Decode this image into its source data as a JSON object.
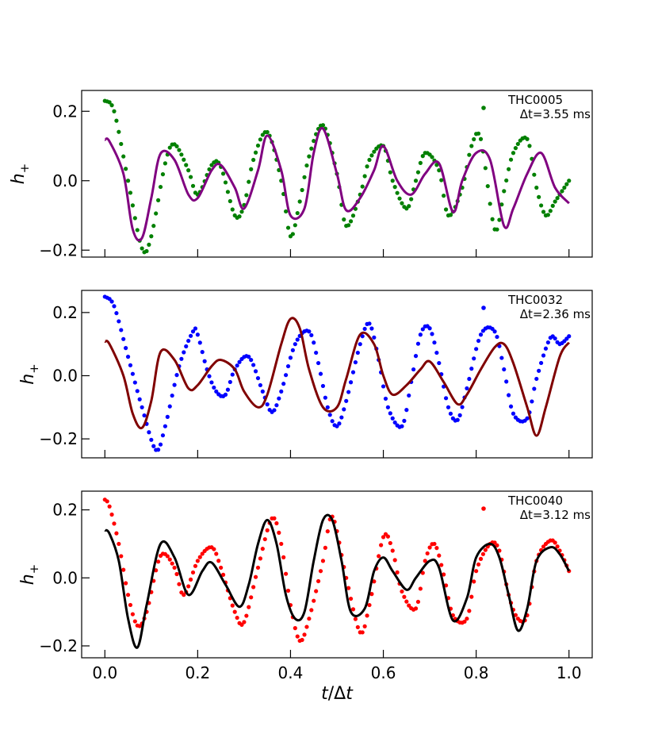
{
  "chart_data": [
    {
      "type": "line",
      "ylabel": "h+",
      "yticks": [
        -0.2,
        0.0,
        0.2
      ],
      "ytick_labels": [
        "−0.2",
        "0.0",
        "0.2"
      ],
      "xlim": [
        -0.05,
        1.05
      ],
      "ylim": [
        -0.22,
        0.26
      ],
      "legend": {
        "placement": "top-right",
        "label_line1": "THC0005",
        "label_line2": "Δt=3.55 ms"
      },
      "series": [
        {
          "name": "THC0005",
          "style": "dots",
          "color": "#008000",
          "x": [
            0.0,
            0.02,
            0.05,
            0.08,
            0.1,
            0.13,
            0.15,
            0.18,
            0.2,
            0.23,
            0.25,
            0.28,
            0.3,
            0.32,
            0.35,
            0.38,
            0.4,
            0.42,
            0.44,
            0.47,
            0.5,
            0.52,
            0.55,
            0.57,
            0.6,
            0.62,
            0.65,
            0.67,
            0.69,
            0.72,
            0.74,
            0.77,
            0.79,
            0.81,
            0.84,
            0.86,
            0.88,
            0.91,
            0.93,
            0.95,
            0.97,
            1.0
          ],
          "y": [
            0.23,
            0.2,
            0.0,
            -0.195,
            -0.16,
            0.05,
            0.105,
            0.03,
            -0.04,
            0.045,
            0.04,
            -0.1,
            -0.07,
            0.06,
            0.14,
            0.0,
            -0.16,
            -0.06,
            0.07,
            0.16,
            0.02,
            -0.13,
            -0.04,
            0.06,
            0.1,
            0.0,
            -0.08,
            0.0,
            0.08,
            0.03,
            -0.1,
            -0.02,
            0.1,
            0.12,
            -0.14,
            -0.03,
            0.08,
            0.12,
            -0.02,
            -0.1,
            -0.06,
            0.0
          ]
        },
        {
          "name": "",
          "style": "line",
          "color": "#800080",
          "x": [
            0.0,
            0.01,
            0.04,
            0.06,
            0.08,
            0.1,
            0.12,
            0.15,
            0.18,
            0.2,
            0.23,
            0.25,
            0.28,
            0.3,
            0.33,
            0.35,
            0.38,
            0.4,
            0.43,
            0.45,
            0.47,
            0.5,
            0.52,
            0.55,
            0.58,
            0.6,
            0.63,
            0.66,
            0.69,
            0.72,
            0.75,
            0.77,
            0.8,
            0.83,
            0.86,
            0.88,
            0.91,
            0.94,
            0.97,
            1.0
          ],
          "y": [
            0.118,
            0.113,
            0.02,
            -0.14,
            -0.165,
            -0.05,
            0.078,
            0.06,
            -0.04,
            -0.05,
            0.03,
            0.045,
            -0.02,
            -0.08,
            0.03,
            0.13,
            0.03,
            -0.1,
            -0.08,
            0.08,
            0.15,
            0.02,
            -0.085,
            -0.05,
            0.03,
            0.1,
            0.0,
            -0.04,
            0.02,
            0.05,
            -0.09,
            0.0,
            0.08,
            0.06,
            -0.13,
            -0.08,
            0.02,
            0.08,
            -0.02,
            -0.065
          ]
        }
      ]
    },
    {
      "type": "line",
      "ylabel": "h+",
      "yticks": [
        -0.2,
        0.0,
        0.2
      ],
      "ytick_labels": [
        "−0.2",
        "0.0",
        "0.2"
      ],
      "xlim": [
        -0.05,
        1.05
      ],
      "ylim": [
        -0.26,
        0.27
      ],
      "legend": {
        "placement": "top-right",
        "label_line1": "THC0032",
        "label_line2": "Δt=2.36 ms"
      },
      "series": [
        {
          "name": "THC0032",
          "style": "dots",
          "color": "#0000ff",
          "x": [
            0.0,
            0.02,
            0.05,
            0.08,
            0.11,
            0.13,
            0.16,
            0.19,
            0.2,
            0.22,
            0.24,
            0.26,
            0.28,
            0.31,
            0.34,
            0.36,
            0.38,
            0.41,
            0.44,
            0.46,
            0.48,
            0.5,
            0.52,
            0.55,
            0.57,
            0.59,
            0.61,
            0.64,
            0.66,
            0.68,
            0.7,
            0.72,
            0.74,
            0.76,
            0.78,
            0.81,
            0.84,
            0.86,
            0.88,
            0.91,
            0.93,
            0.96,
            0.98,
            1.0
          ],
          "y": [
            0.25,
            0.22,
            0.06,
            -0.1,
            -0.235,
            -0.16,
            0.03,
            0.14,
            0.13,
            0.02,
            -0.05,
            -0.06,
            0.02,
            0.06,
            -0.05,
            -0.115,
            -0.05,
            0.1,
            0.14,
            0.04,
            -0.1,
            -0.16,
            -0.08,
            0.1,
            0.165,
            0.05,
            -0.1,
            -0.16,
            -0.02,
            0.13,
            0.15,
            0.04,
            -0.1,
            -0.14,
            -0.04,
            0.13,
            0.14,
            0.02,
            -0.12,
            -0.135,
            -0.01,
            0.12,
            0.1,
            0.125
          ]
        },
        {
          "name": "",
          "style": "line",
          "color": "#800000",
          "x": [
            0.0,
            0.01,
            0.04,
            0.06,
            0.08,
            0.1,
            0.12,
            0.15,
            0.18,
            0.2,
            0.23,
            0.25,
            0.28,
            0.3,
            0.33,
            0.35,
            0.38,
            0.4,
            0.42,
            0.44,
            0.47,
            0.5,
            0.52,
            0.55,
            0.58,
            0.6,
            0.62,
            0.65,
            0.68,
            0.7,
            0.73,
            0.76,
            0.78,
            0.81,
            0.84,
            0.86,
            0.88,
            0.91,
            0.93,
            0.95,
            0.98,
            1.0
          ],
          "y": [
            0.108,
            0.1,
            0.0,
            -0.12,
            -0.165,
            -0.08,
            0.075,
            0.05,
            -0.04,
            -0.03,
            0.03,
            0.05,
            0.02,
            -0.05,
            -0.1,
            -0.06,
            0.1,
            0.18,
            0.15,
            0.02,
            -0.1,
            -0.1,
            -0.01,
            0.13,
            0.1,
            0.0,
            -0.06,
            -0.03,
            0.02,
            0.045,
            -0.02,
            -0.09,
            -0.06,
            0.02,
            0.09,
            0.1,
            0.04,
            -0.1,
            -0.19,
            -0.1,
            0.06,
            0.105
          ]
        }
      ]
    },
    {
      "type": "line",
      "ylabel": "h+",
      "xlabel": "t/Δt",
      "xticks": [
        0.0,
        0.2,
        0.4,
        0.6,
        0.8,
        1.0
      ],
      "xtick_labels": [
        "0.0",
        "0.2",
        "0.4",
        "0.6",
        "0.8",
        "1.0"
      ],
      "yticks": [
        -0.2,
        0.0,
        0.2
      ],
      "ytick_labels": [
        "−0.2",
        "0.0",
        "0.2"
      ],
      "xlim": [
        -0.05,
        1.05
      ],
      "ylim": [
        -0.235,
        0.255
      ],
      "legend": {
        "placement": "top-right",
        "label_line1": "THC0040",
        "label_line2": "Δt=3.12 ms"
      },
      "series": [
        {
          "name": "THC0040",
          "style": "dots",
          "color": "#ff0000",
          "x": [
            0.0,
            0.01,
            0.03,
            0.05,
            0.07,
            0.09,
            0.12,
            0.15,
            0.17,
            0.2,
            0.23,
            0.25,
            0.28,
            0.3,
            0.33,
            0.36,
            0.38,
            0.4,
            0.42,
            0.44,
            0.47,
            0.49,
            0.52,
            0.55,
            0.57,
            0.6,
            0.62,
            0.64,
            0.67,
            0.69,
            0.71,
            0.73,
            0.75,
            0.78,
            0.8,
            0.83,
            0.85,
            0.87,
            0.89,
            0.91,
            0.93,
            0.96,
            0.98,
            1.0
          ],
          "y": [
            0.23,
            0.21,
            0.1,
            -0.05,
            -0.14,
            -0.1,
            0.065,
            0.03,
            -0.05,
            0.05,
            0.09,
            0.03,
            -0.1,
            -0.13,
            0.03,
            0.175,
            0.1,
            -0.08,
            -0.185,
            -0.12,
            0.05,
            0.18,
            0.0,
            -0.16,
            -0.08,
            0.12,
            0.08,
            -0.04,
            -0.09,
            0.05,
            0.1,
            0.01,
            -0.11,
            -0.12,
            0.02,
            0.1,
            0.08,
            -0.05,
            -0.12,
            -0.11,
            0.05,
            0.11,
            0.08,
            0.02
          ]
        },
        {
          "name": "",
          "style": "line",
          "color": "#000000",
          "x": [
            0.0,
            0.01,
            0.03,
            0.05,
            0.07,
            0.09,
            0.12,
            0.15,
            0.18,
            0.21,
            0.23,
            0.26,
            0.29,
            0.31,
            0.33,
            0.35,
            0.37,
            0.39,
            0.41,
            0.43,
            0.45,
            0.47,
            0.49,
            0.51,
            0.53,
            0.56,
            0.58,
            0.6,
            0.62,
            0.65,
            0.67,
            0.7,
            0.72,
            0.75,
            0.78,
            0.8,
            0.83,
            0.85,
            0.87,
            0.89,
            0.91,
            0.93,
            0.96,
            0.98,
            1.0
          ],
          "y": [
            0.14,
            0.13,
            0.05,
            -0.12,
            -0.205,
            -0.08,
            0.1,
            0.06,
            -0.05,
            0.02,
            0.045,
            -0.02,
            -0.085,
            -0.02,
            0.1,
            0.17,
            0.1,
            -0.05,
            -0.12,
            -0.1,
            0.05,
            0.17,
            0.17,
            0.05,
            -0.1,
            -0.09,
            0.02,
            0.06,
            0.02,
            -0.035,
            0.0,
            0.05,
            0.03,
            -0.125,
            -0.06,
            0.06,
            0.1,
            0.06,
            -0.05,
            -0.155,
            -0.09,
            0.05,
            0.09,
            0.07,
            0.02
          ]
        }
      ]
    }
  ]
}
